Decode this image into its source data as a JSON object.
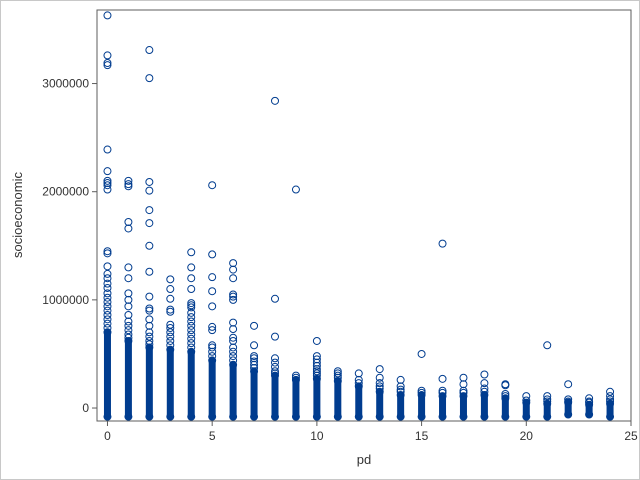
{
  "chart_data": {
    "type": "scatter",
    "xlabel": "pd",
    "ylabel": "socioeconomic",
    "xlim": [
      -0.5,
      25
    ],
    "ylim": [
      -120000,
      3680000
    ],
    "xticks": [
      0,
      5,
      10,
      15,
      20,
      25
    ],
    "yticks": [
      0,
      1000000,
      2000000,
      3000000
    ],
    "grid": false,
    "marker": "open-circle",
    "marker_color": "#003C8F",
    "column_mins": [
      [
        0,
        -80000
      ],
      [
        1,
        -80000
      ],
      [
        2,
        -80000
      ],
      [
        3,
        -80000
      ],
      [
        4,
        -80000
      ],
      [
        5,
        -80000
      ],
      [
        6,
        -80000
      ],
      [
        7,
        -80000
      ],
      [
        8,
        -80000
      ],
      [
        9,
        -80000
      ],
      [
        10,
        -80000
      ],
      [
        11,
        -80000
      ],
      [
        12,
        -80000
      ],
      [
        13,
        -80000
      ],
      [
        14,
        -80000
      ],
      [
        15,
        -80000
      ],
      [
        16,
        -80000
      ],
      [
        17,
        -80000
      ],
      [
        18,
        -80000
      ],
      [
        19,
        -80000
      ],
      [
        20,
        -80000
      ],
      [
        21,
        -80000
      ],
      [
        22,
        -60000
      ],
      [
        23,
        -60000
      ],
      [
        24,
        -80000
      ]
    ],
    "column_solid_tops": [
      [
        0,
        700000
      ],
      [
        1,
        620000
      ],
      [
        2,
        560000
      ],
      [
        3,
        540000
      ],
      [
        4,
        520000
      ],
      [
        5,
        440000
      ],
      [
        6,
        400000
      ],
      [
        7,
        340000
      ],
      [
        8,
        300000
      ],
      [
        9,
        260000
      ],
      [
        10,
        270000
      ],
      [
        11,
        250000
      ],
      [
        12,
        200000
      ],
      [
        13,
        150000
      ],
      [
        14,
        120000
      ],
      [
        15,
        120000
      ],
      [
        16,
        110000
      ],
      [
        17,
        110000
      ],
      [
        18,
        120000
      ],
      [
        19,
        90000
      ],
      [
        20,
        50000
      ],
      [
        21,
        40000
      ],
      [
        22,
        50000
      ],
      [
        23,
        30000
      ],
      [
        24,
        40000
      ]
    ],
    "outliers": [
      [
        0,
        3630000
      ],
      [
        0,
        3260000
      ],
      [
        0,
        3190000
      ],
      [
        0,
        3170000
      ],
      [
        0,
        2390000
      ],
      [
        0,
        2190000
      ],
      [
        0,
        2100000
      ],
      [
        0,
        2080000
      ],
      [
        0,
        2060000
      ],
      [
        0,
        2020000
      ],
      [
        0,
        1450000
      ],
      [
        0,
        1430000
      ],
      [
        0,
        1310000
      ],
      [
        0,
        1240000
      ],
      [
        0,
        1200000
      ],
      [
        0,
        1150000
      ],
      [
        0,
        1110000
      ],
      [
        0,
        1060000
      ],
      [
        0,
        1020000
      ],
      [
        0,
        980000
      ],
      [
        0,
        940000
      ],
      [
        0,
        900000
      ],
      [
        0,
        860000
      ],
      [
        0,
        820000
      ],
      [
        0,
        780000
      ],
      [
        0,
        740000
      ],
      [
        1,
        2100000
      ],
      [
        1,
        2070000
      ],
      [
        1,
        2050000
      ],
      [
        1,
        1720000
      ],
      [
        1,
        1660000
      ],
      [
        1,
        1300000
      ],
      [
        1,
        1200000
      ],
      [
        1,
        1060000
      ],
      [
        1,
        1000000
      ],
      [
        1,
        940000
      ],
      [
        1,
        860000
      ],
      [
        1,
        800000
      ],
      [
        1,
        760000
      ],
      [
        1,
        720000
      ],
      [
        1,
        680000
      ],
      [
        1,
        650000
      ],
      [
        2,
        3310000
      ],
      [
        2,
        3050000
      ],
      [
        2,
        2090000
      ],
      [
        2,
        2010000
      ],
      [
        2,
        1830000
      ],
      [
        2,
        1710000
      ],
      [
        2,
        1500000
      ],
      [
        2,
        1260000
      ],
      [
        2,
        1030000
      ],
      [
        2,
        920000
      ],
      [
        2,
        900000
      ],
      [
        2,
        820000
      ],
      [
        2,
        760000
      ],
      [
        2,
        700000
      ],
      [
        2,
        660000
      ],
      [
        2,
        620000
      ],
      [
        2,
        590000
      ],
      [
        3,
        1190000
      ],
      [
        3,
        1100000
      ],
      [
        3,
        1010000
      ],
      [
        3,
        910000
      ],
      [
        3,
        890000
      ],
      [
        3,
        770000
      ],
      [
        3,
        740000
      ],
      [
        3,
        700000
      ],
      [
        3,
        660000
      ],
      [
        3,
        620000
      ],
      [
        3,
        580000
      ],
      [
        4,
        1440000
      ],
      [
        4,
        1300000
      ],
      [
        4,
        1200000
      ],
      [
        4,
        1100000
      ],
      [
        4,
        970000
      ],
      [
        4,
        950000
      ],
      [
        4,
        930000
      ],
      [
        4,
        880000
      ],
      [
        4,
        840000
      ],
      [
        4,
        800000
      ],
      [
        4,
        760000
      ],
      [
        4,
        720000
      ],
      [
        4,
        680000
      ],
      [
        4,
        640000
      ],
      [
        4,
        600000
      ],
      [
        4,
        560000
      ],
      [
        5,
        2060000
      ],
      [
        5,
        1420000
      ],
      [
        5,
        1210000
      ],
      [
        5,
        1080000
      ],
      [
        5,
        940000
      ],
      [
        5,
        750000
      ],
      [
        5,
        720000
      ],
      [
        5,
        580000
      ],
      [
        5,
        560000
      ],
      [
        5,
        520000
      ],
      [
        5,
        480000
      ],
      [
        6,
        1340000
      ],
      [
        6,
        1280000
      ],
      [
        6,
        1200000
      ],
      [
        6,
        1050000
      ],
      [
        6,
        1030000
      ],
      [
        6,
        1000000
      ],
      [
        6,
        790000
      ],
      [
        6,
        730000
      ],
      [
        6,
        650000
      ],
      [
        6,
        620000
      ],
      [
        6,
        560000
      ],
      [
        6,
        520000
      ],
      [
        6,
        480000
      ],
      [
        6,
        440000
      ],
      [
        7,
        760000
      ],
      [
        7,
        580000
      ],
      [
        7,
        480000
      ],
      [
        7,
        460000
      ],
      [
        7,
        430000
      ],
      [
        7,
        400000
      ],
      [
        7,
        370000
      ],
      [
        8,
        2840000
      ],
      [
        8,
        1010000
      ],
      [
        8,
        660000
      ],
      [
        8,
        460000
      ],
      [
        8,
        420000
      ],
      [
        8,
        380000
      ],
      [
        8,
        340000
      ],
      [
        8,
        320000
      ],
      [
        9,
        2020000
      ],
      [
        9,
        300000
      ],
      [
        9,
        280000
      ],
      [
        10,
        620000
      ],
      [
        10,
        480000
      ],
      [
        10,
        450000
      ],
      [
        10,
        420000
      ],
      [
        10,
        390000
      ],
      [
        10,
        360000
      ],
      [
        10,
        340000
      ],
      [
        10,
        320000
      ],
      [
        10,
        300000
      ],
      [
        11,
        340000
      ],
      [
        11,
        320000
      ],
      [
        11,
        300000
      ],
      [
        11,
        280000
      ],
      [
        12,
        320000
      ],
      [
        12,
        260000
      ],
      [
        12,
        230000
      ],
      [
        13,
        360000
      ],
      [
        13,
        280000
      ],
      [
        13,
        230000
      ],
      [
        13,
        200000
      ],
      [
        13,
        180000
      ],
      [
        14,
        260000
      ],
      [
        14,
        200000
      ],
      [
        14,
        170000
      ],
      [
        14,
        150000
      ],
      [
        15,
        500000
      ],
      [
        15,
        160000
      ],
      [
        15,
        140000
      ],
      [
        16,
        1520000
      ],
      [
        16,
        270000
      ],
      [
        16,
        160000
      ],
      [
        16,
        140000
      ],
      [
        17,
        280000
      ],
      [
        17,
        220000
      ],
      [
        17,
        160000
      ],
      [
        17,
        140000
      ],
      [
        18,
        310000
      ],
      [
        18,
        230000
      ],
      [
        18,
        180000
      ],
      [
        18,
        150000
      ],
      [
        19,
        220000
      ],
      [
        19,
        210000
      ],
      [
        19,
        130000
      ],
      [
        19,
        110000
      ],
      [
        20,
        110000
      ],
      [
        20,
        70000
      ],
      [
        21,
        580000
      ],
      [
        21,
        110000
      ],
      [
        21,
        80000
      ],
      [
        21,
        60000
      ],
      [
        22,
        220000
      ],
      [
        22,
        80000
      ],
      [
        22,
        60000
      ],
      [
        23,
        90000
      ],
      [
        23,
        60000
      ],
      [
        23,
        50000
      ],
      [
        24,
        150000
      ],
      [
        24,
        110000
      ],
      [
        24,
        80000
      ],
      [
        24,
        60000
      ]
    ]
  }
}
